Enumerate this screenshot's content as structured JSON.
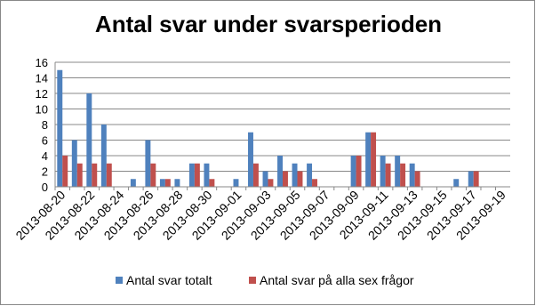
{
  "chart_data": {
    "type": "bar",
    "title": "Antal svar under svarsperioden",
    "categories": [
      "2013-08-20",
      null,
      "2013-08-22",
      null,
      "2013-08-24",
      null,
      "2013-08-26",
      null,
      "2013-08-28",
      null,
      "2013-08-30",
      null,
      "2013-09-01",
      null,
      "2013-09-03",
      null,
      "2013-09-05",
      null,
      "2013-09-07",
      null,
      "2013-09-09",
      null,
      "2013-09-11",
      null,
      "2013-09-13",
      null,
      "2013-09-15",
      null,
      "2013-09-17",
      null,
      "2013-09-19"
    ],
    "series": [
      {
        "name": "Antal svar totalt",
        "color": "#4f81bd",
        "values": [
          15,
          6,
          12,
          8,
          0,
          1,
          6,
          1,
          1,
          3,
          3,
          0,
          1,
          7,
          2,
          4,
          3,
          3,
          0,
          0,
          4,
          7,
          4,
          4,
          3,
          0,
          0,
          1,
          2,
          0,
          0
        ]
      },
      {
        "name": "Antal svar på alla sex frågor",
        "color": "#c0504d",
        "values": [
          4,
          3,
          3,
          3,
          0,
          0,
          3,
          1,
          0,
          3,
          1,
          0,
          0,
          3,
          1,
          2,
          2,
          1,
          0,
          0,
          4,
          7,
          3,
          3,
          2,
          0,
          0,
          0,
          2,
          0,
          0
        ]
      }
    ],
    "ylim": [
      0,
      16
    ],
    "yticks": [
      0,
      2,
      4,
      6,
      8,
      10,
      12,
      14,
      16
    ],
    "grid": true,
    "legend": "bottom"
  }
}
